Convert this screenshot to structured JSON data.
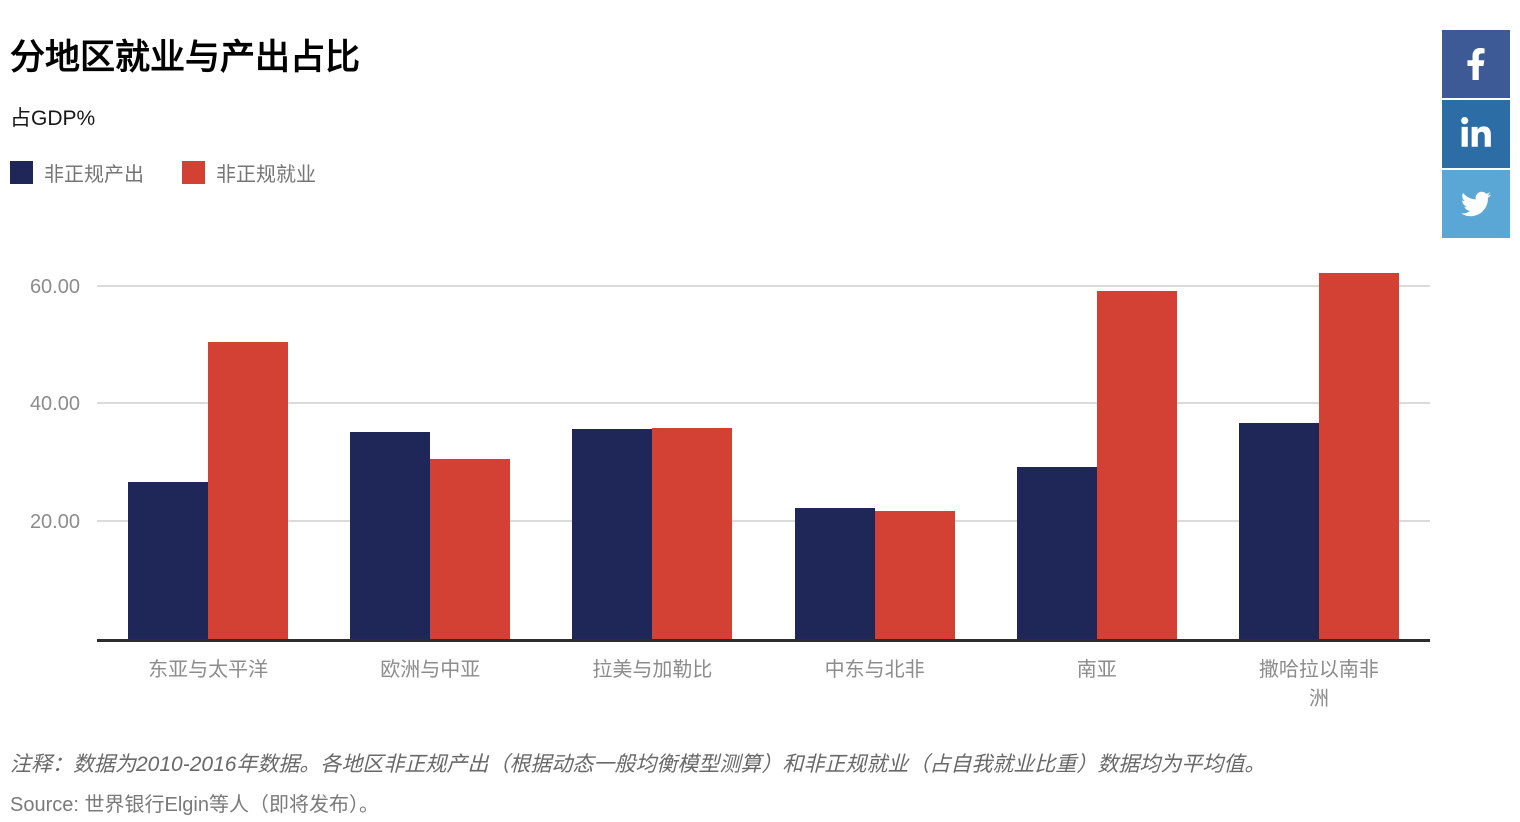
{
  "header": {
    "title": "分地区就业与产出占比",
    "subtitle": "占GDP%"
  },
  "legend": [
    {
      "label": "非正规产出",
      "color": "#1e2757"
    },
    {
      "label": "非正规就业",
      "color": "#d24133"
    }
  ],
  "share_buttons": [
    {
      "name": "facebook",
      "color": "#3d5a96"
    },
    {
      "name": "linkedin",
      "color": "#2d6da6"
    },
    {
      "name": "twitter",
      "color": "#5aa7d6"
    }
  ],
  "chart_data": {
    "type": "bar",
    "title": "分地区就业与产出占比",
    "ylabel": "占GDP%",
    "categories": [
      "东亚与太平洋",
      "欧洲与中亚",
      "拉美与加勒比",
      "中东与北非",
      "南亚",
      "撒哈拉以南非洲"
    ],
    "series": [
      {
        "name": "非正规产出",
        "color": "#1e2757",
        "values": [
          26.7,
          35.2,
          35.6,
          22.3,
          29.2,
          36.7
        ]
      },
      {
        "name": "非正规就业",
        "color": "#d24133",
        "values": [
          50.4,
          30.6,
          35.9,
          21.7,
          59.0,
          62.2
        ]
      }
    ],
    "y_ticks": [
      20,
      40,
      60
    ],
    "y_tick_labels": [
      "20.00",
      "40.00",
      "60.00"
    ],
    "ylim": [
      0,
      66
    ],
    "grid": "horizontal",
    "legend_position": "top-left"
  },
  "notes": {
    "note": "注释：数据为2010-2016年数据。各地区非正规产出（根据动态一般均衡模型测算）和非正规就业（占自我就业比重）数据均为平均值。",
    "source": "Source: 世界银行Elgin等人（即将发布）。"
  }
}
